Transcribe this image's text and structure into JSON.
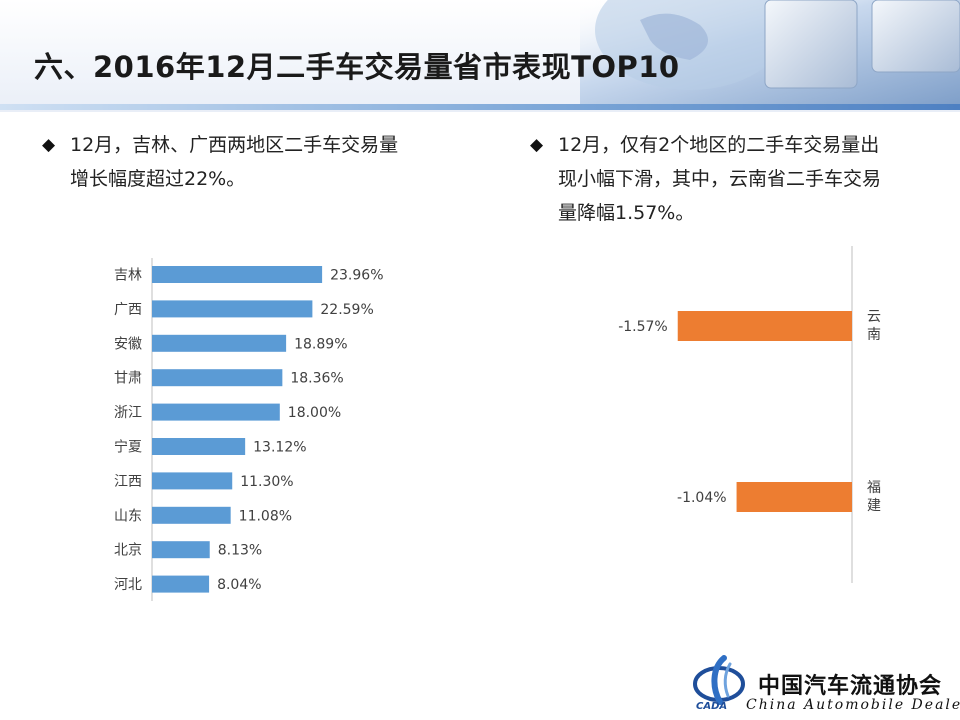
{
  "title": "六、2016年12月二手车交易量省市表现TOP10",
  "bullets": {
    "left": [
      "12月，吉林、广西两地区二手车交易量",
      "增长幅度超过22%。"
    ],
    "right": [
      "12月，仅有2个地区的二手车交易量出",
      "现小幅下滑，其中，云南省二手车交易",
      "量降幅1.57%。"
    ]
  },
  "colors": {
    "bar_blue": "#5b9bd5",
    "bar_orange": "#ed7d31",
    "axis": "#bfbfbf",
    "label": "#404040"
  },
  "chart_data": [
    {
      "type": "bar",
      "orientation": "horizontal",
      "categories": [
        "吉林",
        "广西",
        "安徽",
        "甘肃",
        "浙江",
        "宁夏",
        "江西",
        "山东",
        "北京",
        "河北"
      ],
      "values": [
        23.96,
        22.59,
        18.89,
        18.36,
        18.0,
        13.12,
        11.3,
        11.08,
        8.13,
        8.04
      ],
      "data_labels": [
        "23.96%",
        "22.59%",
        "18.89%",
        "18.36%",
        "18.00%",
        "13.12%",
        "11.30%",
        "11.08%",
        "8.13%",
        "8.04%"
      ],
      "xlim": [
        0,
        30
      ],
      "grid": false,
      "color": "#5b9bd5"
    },
    {
      "type": "bar",
      "orientation": "horizontal",
      "categories": [
        "云南",
        "福建"
      ],
      "values": [
        -1.57,
        -1.04
      ],
      "data_labels": [
        "-1.57%",
        "-1.04%"
      ],
      "xlim": [
        -2.5,
        0
      ],
      "category_axis_position": "right",
      "grid": false,
      "color": "#ed7d31"
    }
  ],
  "footer": {
    "org_cn": "中国汽车流通协会",
    "org_en": "China  Automobile Dealers"
  }
}
